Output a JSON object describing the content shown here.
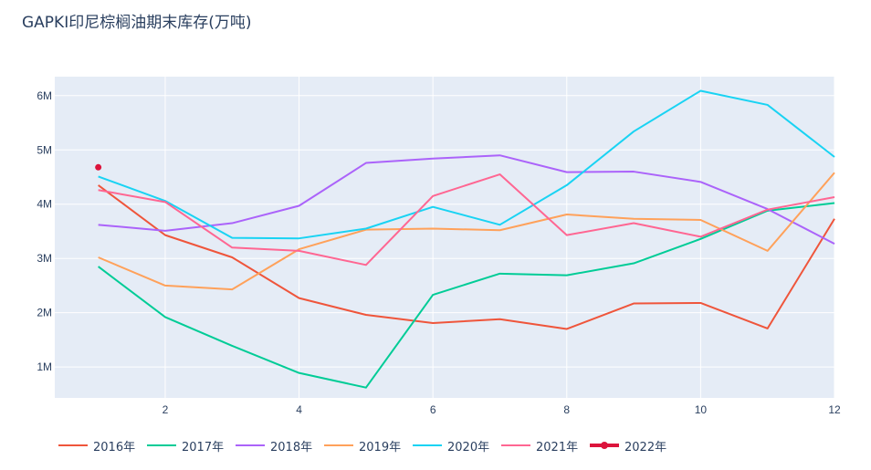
{
  "chart_data": {
    "type": "line",
    "title": "GAPKI印尼棕榈油期末库存(万吨)",
    "xlabel": "",
    "ylabel": "",
    "xlim": [
      0.35,
      12
    ],
    "ylim": [
      430000,
      6350000
    ],
    "x_ticks": [
      {
        "value": 2,
        "label": "2"
      },
      {
        "value": 4,
        "label": "4"
      },
      {
        "value": 6,
        "label": "6"
      },
      {
        "value": 8,
        "label": "8"
      },
      {
        "value": 10,
        "label": "10"
      },
      {
        "value": 12,
        "label": "12"
      }
    ],
    "y_ticks": [
      {
        "value": 1000000,
        "label": "1M"
      },
      {
        "value": 2000000,
        "label": "2M"
      },
      {
        "value": 3000000,
        "label": "3M"
      },
      {
        "value": 4000000,
        "label": "4M"
      },
      {
        "value": 5000000,
        "label": "5M"
      },
      {
        "value": 6000000,
        "label": "6M"
      }
    ],
    "grid": true,
    "legend_placement": "bottom-left",
    "background": "#e5ecf6",
    "series": [
      {
        "name": "2016年",
        "color": "#ef553b",
        "x": [
          1,
          2,
          3,
          4,
          5,
          6,
          7,
          8,
          9,
          10,
          11,
          12
        ],
        "values": [
          4350000,
          3430000,
          3020000,
          2270000,
          1960000,
          1810000,
          1880000,
          1700000,
          2170000,
          2180000,
          1710000,
          3730000
        ]
      },
      {
        "name": "2017年",
        "color": "#00cc96",
        "x": [
          1,
          2,
          3,
          4,
          5,
          6,
          7,
          8,
          9,
          10,
          11,
          12
        ],
        "values": [
          2850000,
          1920000,
          1390000,
          890000,
          620000,
          2330000,
          2720000,
          2690000,
          2910000,
          3360000,
          3880000,
          4020000
        ]
      },
      {
        "name": "2018年",
        "color": "#ab63fa",
        "x": [
          1,
          2,
          3,
          4,
          5,
          6,
          7,
          8,
          9,
          10,
          11,
          12
        ],
        "values": [
          3620000,
          3510000,
          3650000,
          3970000,
          4760000,
          4840000,
          4900000,
          4590000,
          4600000,
          4410000,
          3910000,
          3270000
        ]
      },
      {
        "name": "2019年",
        "color": "#ffa15a",
        "x": [
          1,
          2,
          3,
          4,
          5,
          6,
          7,
          8,
          9,
          10,
          11,
          12
        ],
        "values": [
          3020000,
          2500000,
          2430000,
          3170000,
          3530000,
          3550000,
          3520000,
          3810000,
          3730000,
          3710000,
          3140000,
          4580000
        ]
      },
      {
        "name": "2020年",
        "color": "#19d3f3",
        "x": [
          1,
          2,
          3,
          4,
          5,
          6,
          7,
          8,
          9,
          10,
          11,
          12
        ],
        "values": [
          4510000,
          4060000,
          3380000,
          3370000,
          3550000,
          3950000,
          3620000,
          4350000,
          5340000,
          6090000,
          5830000,
          4870000
        ]
      },
      {
        "name": "2021年",
        "color": "#ff6692",
        "x": [
          1,
          2,
          3,
          4,
          5,
          6,
          7,
          8,
          9,
          10,
          11,
          12
        ],
        "values": [
          4260000,
          4040000,
          3200000,
          3140000,
          2880000,
          4150000,
          4550000,
          3430000,
          3650000,
          3400000,
          3900000,
          4130000
        ]
      },
      {
        "name": "2022年",
        "color": "#dc143c",
        "x": [
          1
        ],
        "values": [
          4680000
        ],
        "mode": "lines+markers",
        "bold": true
      }
    ]
  }
}
